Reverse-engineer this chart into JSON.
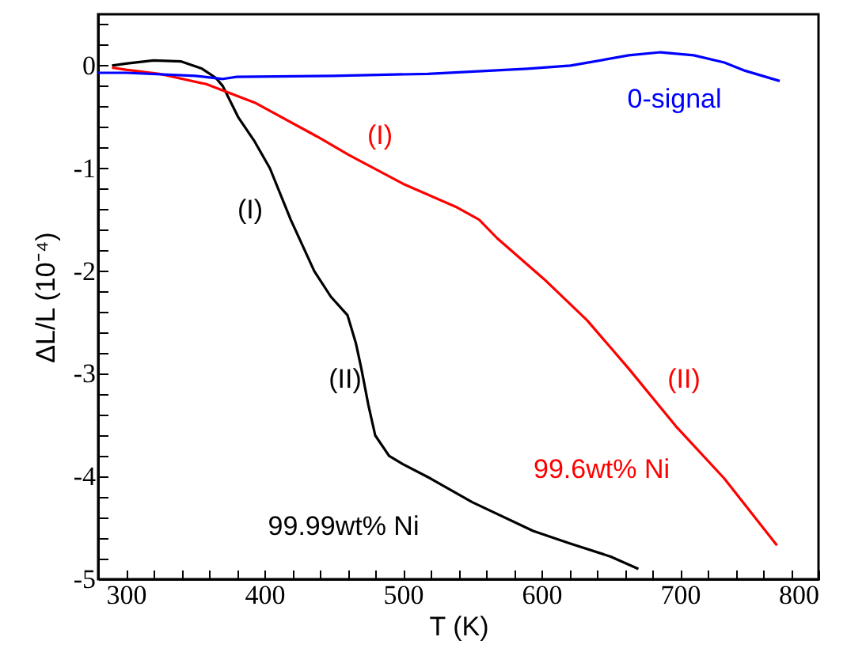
{
  "chart_data": {
    "type": "line",
    "xlabel": "T  (K)",
    "ylabel": "ΔL/L   (10⁻⁴)",
    "xlim": [
      280,
      800
    ],
    "ylim": [
      -5,
      0.5
    ],
    "xticks": [
      300,
      {
        "value": 320,
        "label": null
      },
      {
        "value": 340,
        "label": null
      },
      {
        "value": 360,
        "label": null
      },
      {
        "value": 380,
        "label": null
      },
      400,
      {
        "value": 420,
        "label": null
      },
      {
        "value": 440,
        "label": null
      },
      {
        "value": 460,
        "label": null
      },
      {
        "value": 480,
        "label": null
      },
      500,
      {
        "value": 520,
        "label": null
      },
      {
        "value": 540,
        "label": null
      },
      {
        "value": 560,
        "label": null
      },
      {
        "value": 580,
        "label": null
      },
      600,
      {
        "value": 620,
        "label": null
      },
      {
        "value": 640,
        "label": null
      },
      {
        "value": 660,
        "label": null
      },
      {
        "value": 680,
        "label": null
      },
      700,
      {
        "value": 720,
        "label": null
      },
      {
        "value": 740,
        "label": null
      },
      {
        "value": 760,
        "label": null
      },
      {
        "value": 780,
        "label": null
      },
      800
    ],
    "yticks": [
      -5,
      {
        "value": -4.8,
        "label": null
      },
      {
        "value": -4.6,
        "label": null
      },
      {
        "value": -4.4,
        "label": null
      },
      {
        "value": -4.2,
        "label": null
      },
      -4,
      {
        "value": -3.8,
        "label": null
      },
      {
        "value": -3.6,
        "label": null
      },
      {
        "value": -3.4,
        "label": null
      },
      {
        "value": -3.2,
        "label": null
      },
      -3,
      {
        "value": -2.8,
        "label": null
      },
      {
        "value": -2.6,
        "label": null
      },
      {
        "value": -2.4,
        "label": null
      },
      {
        "value": -2.2,
        "label": null
      },
      -2,
      {
        "value": -1.8,
        "label": null
      },
      {
        "value": -1.6,
        "label": null
      },
      {
        "value": -1.4,
        "label": null
      },
      {
        "value": -1.2,
        "label": null
      },
      -1,
      {
        "value": -0.8,
        "label": null
      },
      {
        "value": -0.6,
        "label": null
      },
      {
        "value": -0.4,
        "label": null
      },
      {
        "value": -0.2,
        "label": null
      },
      0,
      {
        "value": 0.2,
        "label": null
      },
      {
        "value": 0.4,
        "label": null
      }
    ],
    "grid": false,
    "series": [
      {
        "color": "#000000",
        "x": [
          290,
          300,
          320,
          340,
          355,
          365,
          370,
          381,
          393,
          404,
          419,
          436,
          448,
          460,
          466,
          470,
          475,
          480,
          490,
          500,
          520,
          550,
          594,
          620,
          650,
          670
        ],
        "values": [
          0.0,
          0.02,
          0.05,
          0.04,
          -0.03,
          -0.12,
          -0.2,
          -0.5,
          -0.74,
          -1.0,
          -1.5,
          -2.0,
          -2.25,
          -2.43,
          -2.7,
          -2.95,
          -3.3,
          -3.6,
          -3.8,
          -3.88,
          -4.02,
          -4.25,
          -4.53,
          -4.65,
          -4.78,
          -4.9
        ]
      },
      {
        "color": "#ff0000",
        "x": [
          290,
          300,
          324,
          358,
          393,
          438,
          461,
          500,
          539,
          555,
          568,
          602,
          633,
          663,
          697,
          732,
          770
        ],
        "values": [
          -0.02,
          -0.04,
          -0.08,
          -0.18,
          -0.36,
          -0.69,
          -0.87,
          -1.15,
          -1.38,
          -1.5,
          -1.68,
          -2.08,
          -2.48,
          -2.95,
          -3.51,
          -4.02,
          -4.67
        ]
      },
      {
        "color": "#0000ff",
        "x": [
          280,
          300,
          350,
          370,
          380,
          450,
          518,
          590,
          621,
          663,
          686,
          710,
          732,
          747,
          772
        ],
        "values": [
          -0.07,
          -0.07,
          -0.1,
          -0.13,
          -0.11,
          -0.1,
          -0.08,
          -0.03,
          0,
          0.1,
          0.13,
          0.1,
          0.03,
          -0.05,
          -0.15
        ]
      }
    ],
    "annotations": [
      "(I)",
      "(II)",
      "(I)",
      "(II)",
      "0-signal",
      "99.6wt% Ni",
      "99.99wt% Ni"
    ]
  }
}
